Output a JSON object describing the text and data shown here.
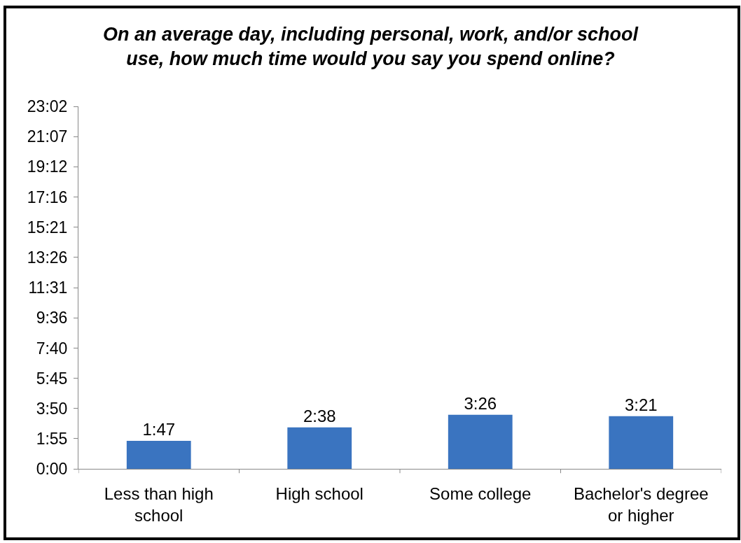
{
  "chart_data": {
    "type": "bar",
    "title": "On an average day, including personal, work, and/or school use, how much time would you say you spend online?",
    "categories": [
      "Less than high school",
      "High school",
      "Some college",
      "Bachelor's degree or higher"
    ],
    "values": [
      1.7833,
      2.6333,
      3.4333,
      3.35
    ],
    "value_labels": [
      "1:47",
      "2:38",
      "3:26",
      "3:21"
    ],
    "color": "#3a74c0",
    "ylim": [
      0,
      23.0333
    ],
    "yticks": [
      {
        "value": 0,
        "label": "0:00"
      },
      {
        "value": 1.9167,
        "label": "1:55"
      },
      {
        "value": 3.8333,
        "label": "3:50"
      },
      {
        "value": 5.75,
        "label": "5:45"
      },
      {
        "value": 7.6667,
        "label": "7:40"
      },
      {
        "value": 9.6,
        "label": "9:36"
      },
      {
        "value": 11.5167,
        "label": "11:31"
      },
      {
        "value": 13.4333,
        "label": "13:26"
      },
      {
        "value": 15.35,
        "label": "15:21"
      },
      {
        "value": 17.2667,
        "label": "17:16"
      },
      {
        "value": 19.2,
        "label": "19:12"
      },
      {
        "value": 21.1167,
        "label": "21:07"
      },
      {
        "value": 23.0333,
        "label": "23:02"
      }
    ]
  }
}
